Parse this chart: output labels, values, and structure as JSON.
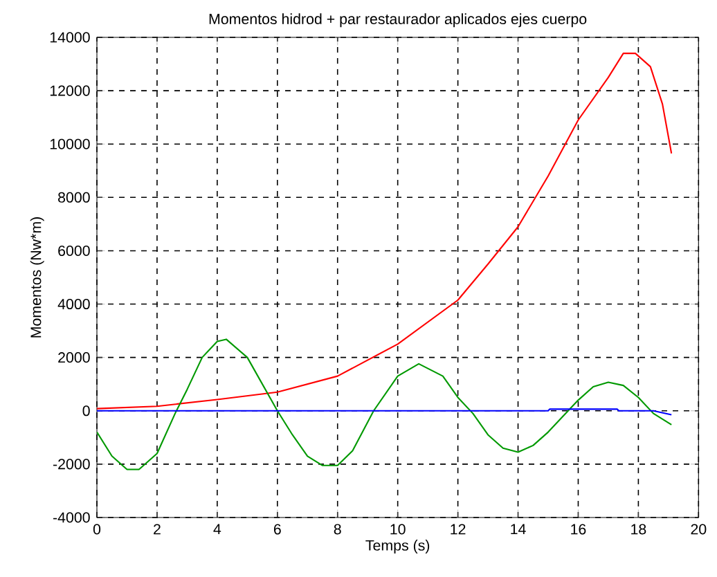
{
  "chart_data": {
    "type": "line",
    "title": "Momentos hidrod + par restaurador aplicados ejes cuerpo",
    "xlabel": "Temps (s)",
    "ylabel": "Momentos (Nw*m)",
    "xlim": [
      0,
      20
    ],
    "ylim": [
      -4000,
      14000
    ],
    "xticks": [
      0,
      2,
      4,
      6,
      8,
      10,
      12,
      14,
      16,
      18,
      20
    ],
    "yticks": [
      -4000,
      -2000,
      0,
      2000,
      4000,
      6000,
      8000,
      10000,
      12000,
      14000
    ],
    "grid": true,
    "series": [
      {
        "color": "#ff0000",
        "x": [
          0,
          2,
          4,
          6,
          8,
          10,
          12,
          13,
          14,
          15,
          16,
          17,
          17.5,
          17.9,
          18.4,
          18.8,
          19.1
        ],
        "values": [
          80,
          170,
          420,
          700,
          1300,
          2500,
          4150,
          5500,
          6900,
          8800,
          10900,
          12500,
          13400,
          13400,
          12900,
          11500,
          9650
        ]
      },
      {
        "color": "#009900",
        "x": [
          0,
          0.5,
          1,
          1.4,
          2,
          2.6,
          3,
          3.5,
          4,
          4.3,
          5,
          6,
          6.5,
          7,
          7.5,
          8,
          8.5,
          9.2,
          10,
          10.7,
          11.5,
          12,
          12.5,
          13,
          13.5,
          14,
          14.5,
          15,
          16,
          16.5,
          17,
          17.5,
          18,
          18.5,
          19.1
        ],
        "values": [
          -800,
          -1700,
          -2200,
          -2200,
          -1600,
          -100,
          800,
          2000,
          2600,
          2680,
          2000,
          0,
          -900,
          -1700,
          -2050,
          -2050,
          -1500,
          0,
          1300,
          1760,
          1300,
          500,
          -100,
          -900,
          -1400,
          -1550,
          -1300,
          -800,
          400,
          900,
          1070,
          950,
          500,
          -100,
          -520
        ]
      },
      {
        "color": "#0000ff",
        "x": [
          0,
          15,
          15.05,
          17.3,
          17.35,
          18.5,
          19.1
        ],
        "values": [
          0,
          0,
          60,
          60,
          0,
          0,
          -150
        ]
      }
    ]
  }
}
